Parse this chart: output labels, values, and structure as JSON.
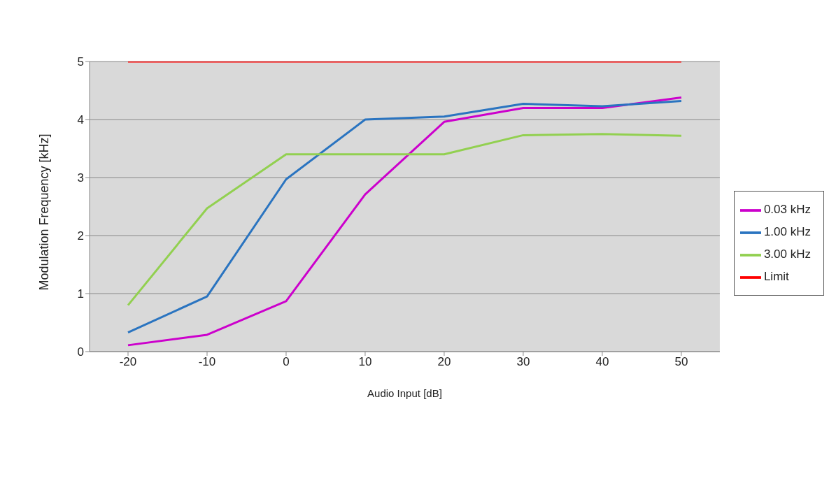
{
  "chart_data": {
    "type": "line",
    "xlabel": "Audio Input [dB]",
    "ylabel": "Modulation Frequency [kHz]",
    "categories": [
      "-20",
      "-10",
      "0",
      "10",
      "20",
      "30",
      "40",
      "50"
    ],
    "series": [
      {
        "name": "0.03 kHz",
        "color": "#cc00cc",
        "values": [
          0.11,
          0.29,
          0.87,
          2.71,
          3.96,
          4.2,
          4.2,
          4.38
        ]
      },
      {
        "name": "1.00 kHz",
        "color": "#2a74c0",
        "values": [
          0.33,
          0.95,
          2.97,
          4.0,
          4.05,
          4.27,
          4.23,
          4.32
        ]
      },
      {
        "name": "3.00 kHz",
        "color": "#92d050",
        "values": [
          0.8,
          2.47,
          3.4,
          3.4,
          3.4,
          3.73,
          3.75,
          3.72
        ]
      },
      {
        "name": "Limit",
        "color": "#ff0000",
        "values": [
          5,
          5,
          5,
          5,
          5,
          5,
          5,
          5
        ]
      }
    ],
    "ylim": [
      0,
      5
    ],
    "yticks": [
      0,
      1,
      2,
      3,
      4,
      5
    ],
    "grid": "y",
    "legend": "right",
    "marker": "none",
    "line_style": "solid"
  }
}
